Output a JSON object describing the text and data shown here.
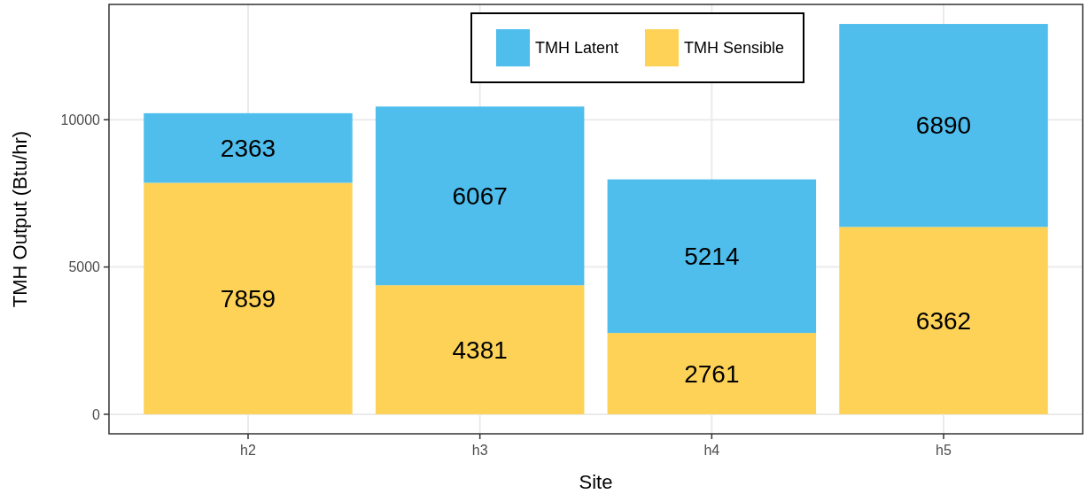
{
  "chart_data": {
    "type": "bar",
    "stacked": true,
    "xlabel": "Site",
    "ylabel": "TMH Output (Btu/hr)",
    "categories": [
      "h2",
      "h3",
      "h4",
      "h5"
    ],
    "series": [
      {
        "name": "TMH Sensible",
        "color": "#fdd257",
        "values": [
          7859,
          4381,
          2761,
          6362
        ]
      },
      {
        "name": "TMH Latent",
        "color": "#4fbeed",
        "values": [
          2363,
          6067,
          5214,
          6890
        ]
      }
    ],
    "ylim": [
      -663,
      13915
    ],
    "yticks": [
      0,
      5000,
      10000
    ],
    "grid": true,
    "legend": "top",
    "data_labels": true
  }
}
